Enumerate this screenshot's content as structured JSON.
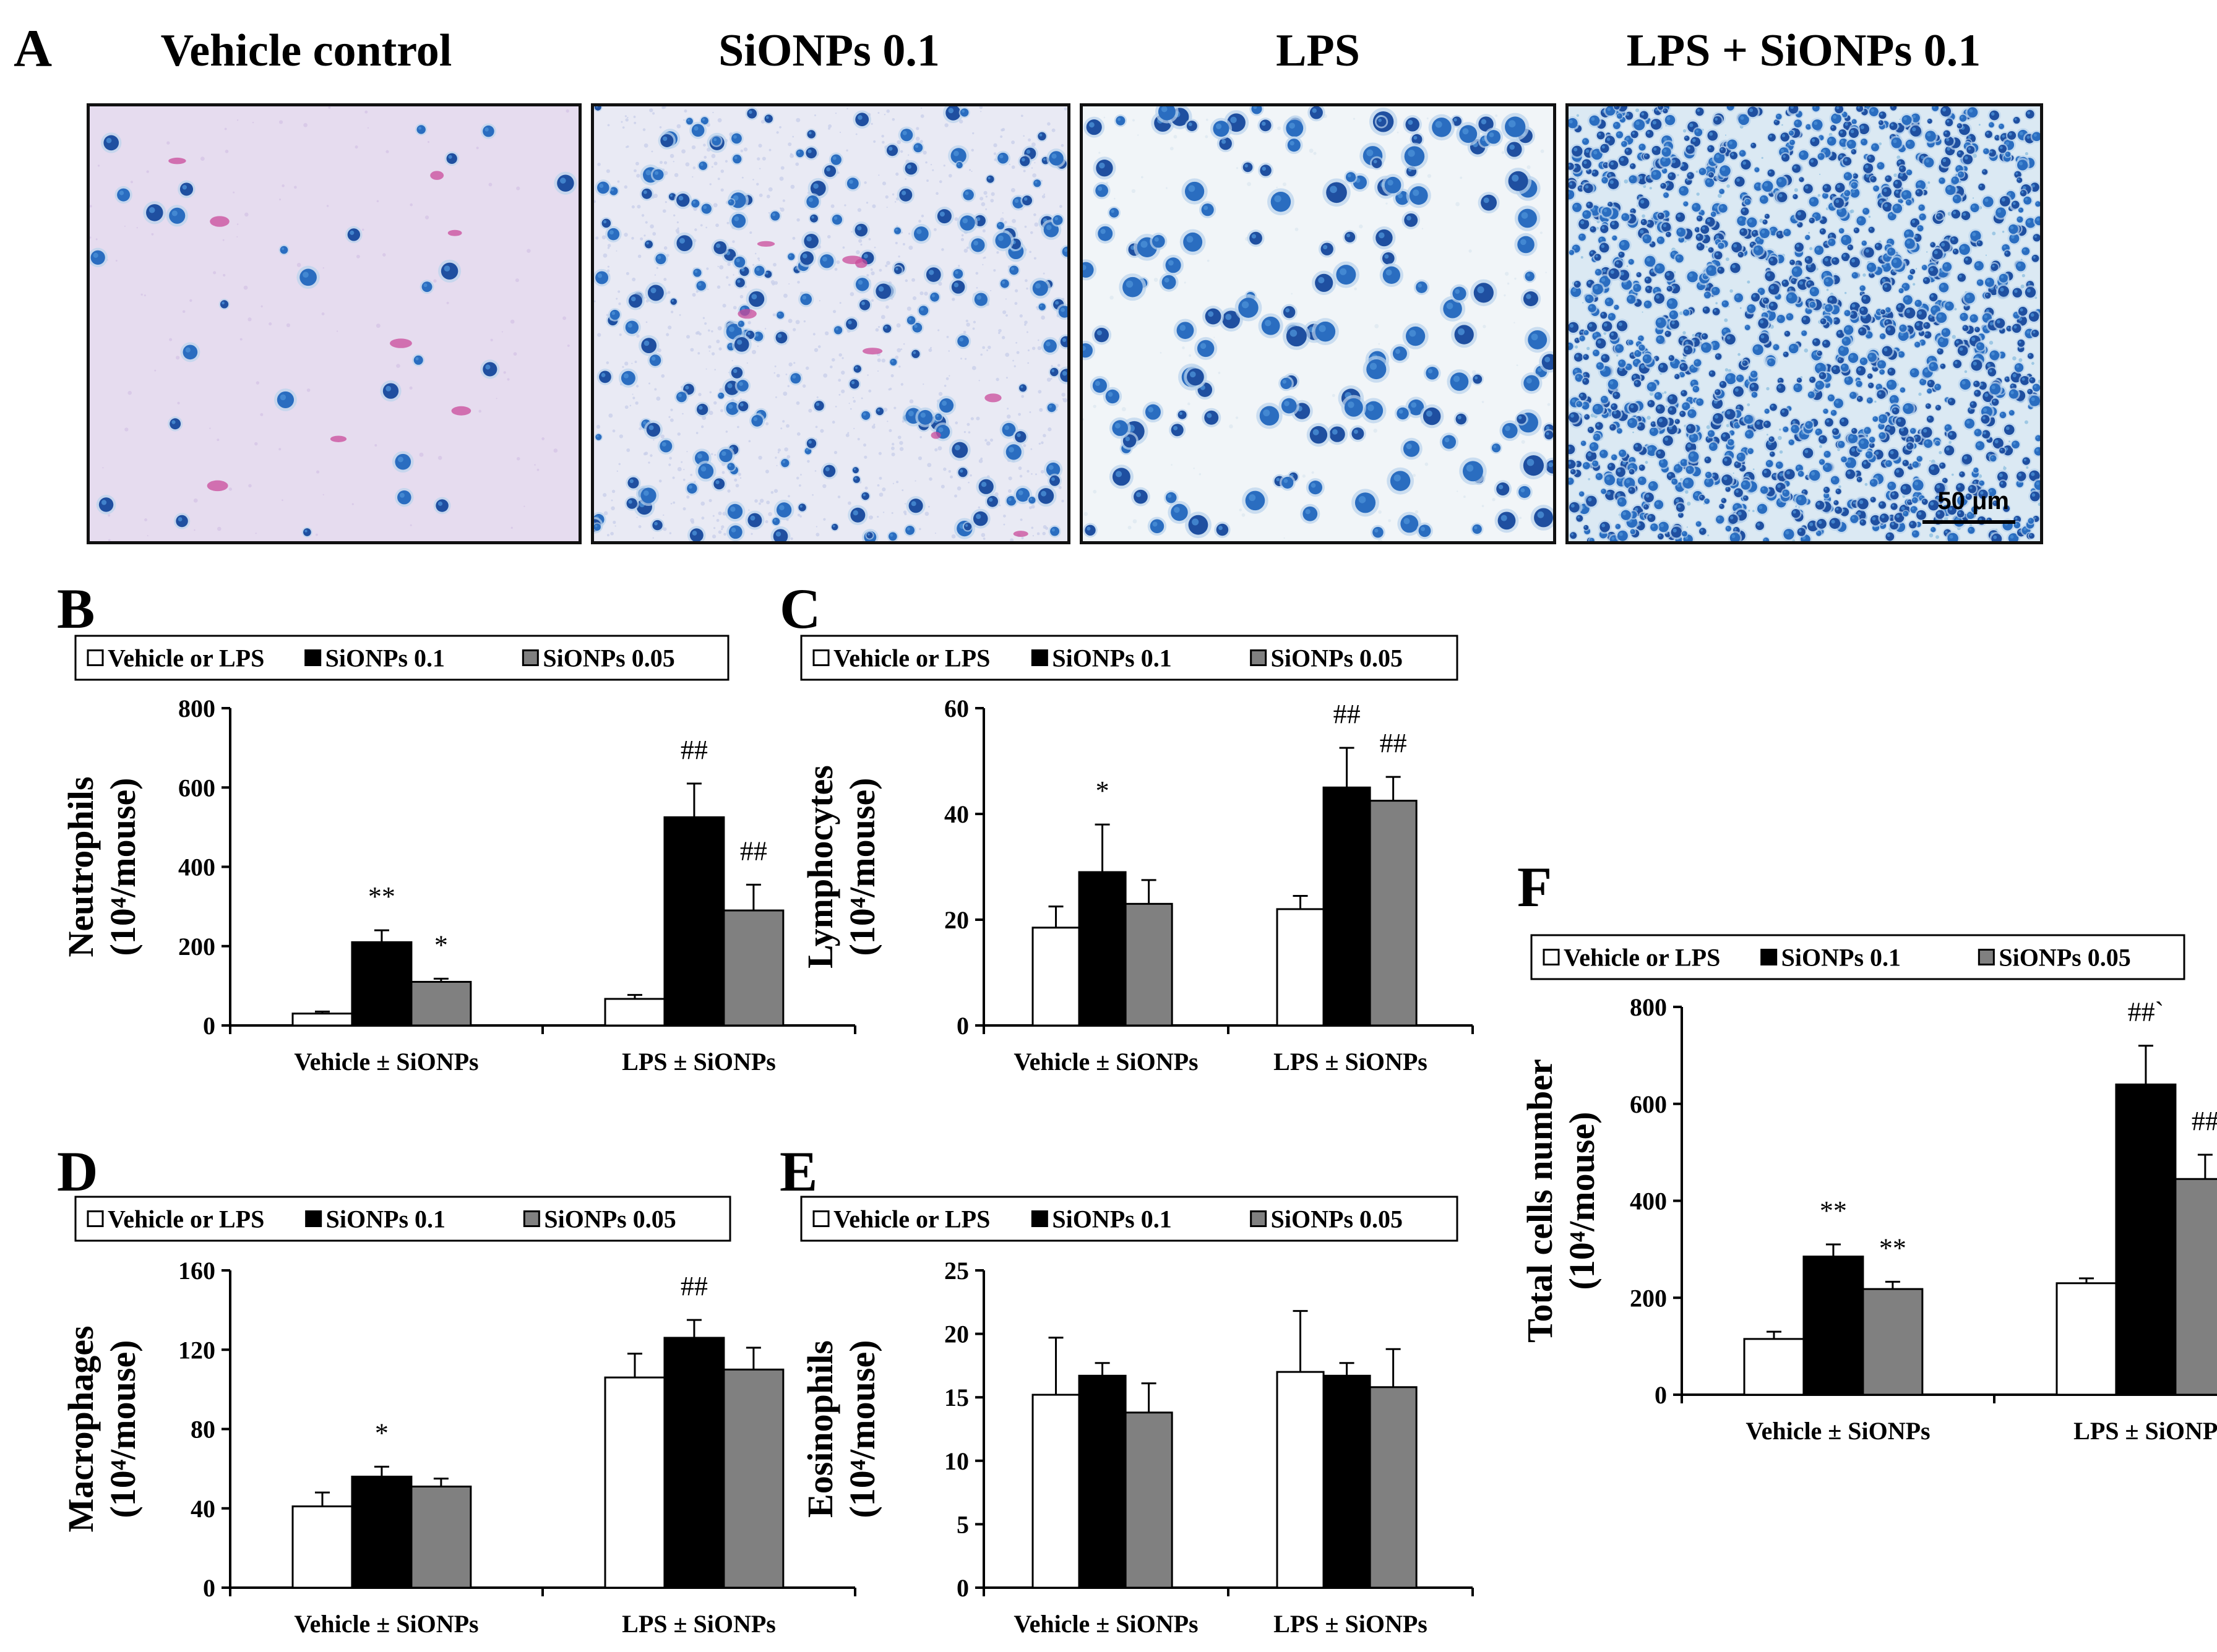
{
  "panels": {
    "A": {
      "letter": "A",
      "images": [
        {
          "title": "Vehicle control",
          "density": "sparse"
        },
        {
          "title": "SiONPs 0.1",
          "density": "medium"
        },
        {
          "title": "LPS",
          "density": "medium-large"
        },
        {
          "title": "LPS + SiONPs 0.1",
          "density": "dense"
        }
      ],
      "scale_bar_label": "50 μm"
    },
    "B": {
      "letter": "B"
    },
    "C": {
      "letter": "C"
    },
    "D": {
      "letter": "D"
    },
    "E": {
      "letter": "E"
    },
    "F": {
      "letter": "F"
    }
  },
  "legend": {
    "items": [
      {
        "label": "Vehicle or LPS",
        "color": "#ffffff"
      },
      {
        "label": "SiONPs 0.1",
        "color": "#000000"
      },
      {
        "label": "SiONPs 0.05",
        "color": "#808080"
      }
    ]
  },
  "chart_data": [
    {
      "id": "B",
      "type": "bar",
      "ylabel_line1": "Neutrophils",
      "ylabel_line2": "(10⁴/mouse)",
      "categories": [
        "Vehicle ± SiONPs",
        "LPS ± SiONPs"
      ],
      "ylim": [
        0,
        800
      ],
      "yticks": [
        "0",
        "200",
        "400",
        "600",
        "800"
      ],
      "series": [
        {
          "name": "Vehicle or LPS",
          "values": [
            30,
            67
          ],
          "errors": [
            5,
            10
          ]
        },
        {
          "name": "SiONPs 0.1",
          "values": [
            210,
            525
          ],
          "errors": [
            30,
            85
          ]
        },
        {
          "name": "SiONPs 0.05",
          "values": [
            110,
            290
          ],
          "errors": [
            8,
            65
          ]
        }
      ],
      "annotations": [
        {
          "text": "**",
          "cat": 0,
          "series": 1
        },
        {
          "text": "*",
          "cat": 0,
          "series": 2
        },
        {
          "text": "##",
          "cat": 1,
          "series": 1
        },
        {
          "text": "##",
          "cat": 1,
          "series": 2
        }
      ]
    },
    {
      "id": "C",
      "type": "bar",
      "ylabel_line1": "Lymphocytes",
      "ylabel_line2": "(10⁴/mouse)",
      "categories": [
        "Vehicle ± SiONPs",
        "LPS ± SiONPs"
      ],
      "ylim": [
        0,
        60
      ],
      "yticks": [
        "0",
        "20",
        "40",
        "60"
      ],
      "series": [
        {
          "name": "Vehicle or LPS",
          "values": [
            18.5,
            22
          ],
          "errors": [
            4,
            2.5
          ]
        },
        {
          "name": "SiONPs 0.1",
          "values": [
            29,
            45
          ],
          "errors": [
            9,
            7.5
          ]
        },
        {
          "name": "SiONPs 0.05",
          "values": [
            23,
            42.5
          ],
          "errors": [
            4.5,
            4.5
          ]
        }
      ],
      "annotations": [
        {
          "text": "*",
          "cat": 0,
          "series": 1
        },
        {
          "text": "##",
          "cat": 1,
          "series": 1
        },
        {
          "text": "##",
          "cat": 1,
          "series": 2
        }
      ]
    },
    {
      "id": "D",
      "type": "bar",
      "ylabel_line1": "Macrophages",
      "ylabel_line2": "(10⁴/mouse)",
      "categories": [
        "Vehicle ± SiONPs",
        "LPS ± SiONPs"
      ],
      "ylim": [
        0,
        160
      ],
      "yticks": [
        "0",
        "40",
        "80",
        "120",
        "160"
      ],
      "series": [
        {
          "name": "Vehicle or LPS",
          "values": [
            41,
            106
          ],
          "errors": [
            7,
            12
          ]
        },
        {
          "name": "SiONPs 0.1",
          "values": [
            56,
            126
          ],
          "errors": [
            5,
            9
          ]
        },
        {
          "name": "SiONPs 0.05",
          "values": [
            51,
            110
          ],
          "errors": [
            4,
            11
          ]
        }
      ],
      "annotations": [
        {
          "text": "*",
          "cat": 0,
          "series": 1
        },
        {
          "text": "##",
          "cat": 1,
          "series": 1
        }
      ]
    },
    {
      "id": "E",
      "type": "bar",
      "ylabel_line1": "Eosinophils",
      "ylabel_line2": "(10⁴/mouse)",
      "categories": [
        "Vehicle ± SiONPs",
        "LPS ± SiONPs"
      ],
      "ylim": [
        0,
        25
      ],
      "yticks": [
        "0",
        "5",
        "10",
        "15",
        "20",
        "25"
      ],
      "series": [
        {
          "name": "Vehicle or LPS",
          "values": [
            15.2,
            17
          ],
          "errors": [
            4.5,
            4.8
          ]
        },
        {
          "name": "SiONPs 0.1",
          "values": [
            16.7,
            16.7
          ],
          "errors": [
            1,
            1
          ]
        },
        {
          "name": "SiONPs 0.05",
          "values": [
            13.8,
            15.8
          ],
          "errors": [
            2.3,
            3
          ]
        }
      ],
      "annotations": []
    },
    {
      "id": "F",
      "type": "bar",
      "ylabel_line1": "Total cells number",
      "ylabel_line2": "(10⁴/mouse)",
      "categories": [
        "Vehicle ± SiONPs",
        "LPS ± SiONPs"
      ],
      "ylim": [
        0,
        800
      ],
      "yticks": [
        "0",
        "200",
        "400",
        "600",
        "800"
      ],
      "series": [
        {
          "name": "Vehicle or LPS",
          "values": [
            115,
            230
          ],
          "errors": [
            15,
            10
          ]
        },
        {
          "name": "SiONPs 0.1",
          "values": [
            285,
            640
          ],
          "errors": [
            25,
            80
          ]
        },
        {
          "name": "SiONPs 0.05",
          "values": [
            218,
            445
          ],
          "errors": [
            15,
            50
          ]
        }
      ],
      "annotations": [
        {
          "text": "**",
          "cat": 0,
          "series": 1
        },
        {
          "text": "**",
          "cat": 0,
          "series": 2
        },
        {
          "text": "##`",
          "cat": 1,
          "series": 1
        },
        {
          "text": "##",
          "cat": 1,
          "series": 2
        }
      ]
    }
  ]
}
